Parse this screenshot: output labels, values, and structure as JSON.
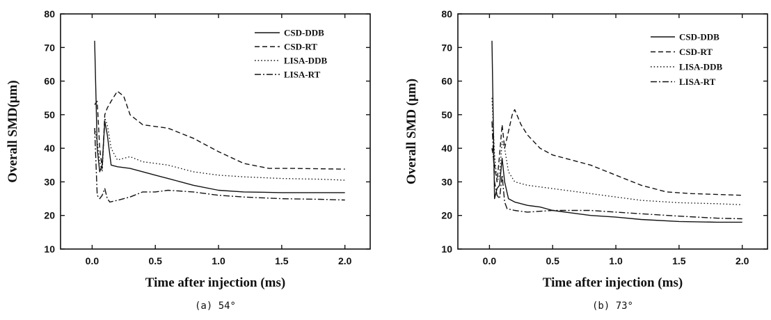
{
  "chart_data": [
    {
      "type": "line",
      "xlabel": "Time after injection (ms)",
      "ylabel": "Overall SMD(μm)",
      "caption": "(a)  54°",
      "xlim": [
        -0.25,
        2.2
      ],
      "ylim": [
        10,
        80
      ],
      "xticks": [
        0.0,
        0.5,
        1.0,
        1.5,
        2.0
      ],
      "xtick_labels": [
        "0.0",
        "0.5",
        "1.0",
        "1.5",
        "2.0"
      ],
      "yticks": [
        10,
        20,
        30,
        40,
        50,
        60,
        70,
        80
      ],
      "ytick_labels": [
        "10",
        "20",
        "30",
        "40",
        "50",
        "60",
        "70",
        "80"
      ],
      "legend_position": "top-right",
      "series": [
        {
          "name": "CSD-DDB",
          "style": "solid",
          "x": [
            0.02,
            0.04,
            0.06,
            0.08,
            0.1,
            0.12,
            0.15,
            0.2,
            0.3,
            0.4,
            0.5,
            0.6,
            0.7,
            0.8,
            1.0,
            1.2,
            1.5,
            1.8,
            2.0
          ],
          "y": [
            72,
            40,
            33,
            35,
            48,
            44,
            35,
            34.5,
            34,
            33,
            32,
            31,
            30,
            29,
            27.5,
            27,
            26.8,
            26.8,
            26.8
          ]
        },
        {
          "name": "CSD-RT",
          "style": "dashed",
          "x": [
            0.02,
            0.04,
            0.06,
            0.08,
            0.1,
            0.12,
            0.15,
            0.2,
            0.25,
            0.3,
            0.4,
            0.5,
            0.6,
            0.8,
            1.0,
            1.2,
            1.4,
            1.6,
            2.0
          ],
          "y": [
            53,
            54,
            40,
            34,
            50,
            52,
            54,
            57,
            55.5,
            50,
            47,
            46.5,
            46,
            43,
            39,
            35.5,
            34,
            34,
            33.8
          ]
        },
        {
          "name": "LISA-DDB",
          "style": "dotted",
          "x": [
            0.02,
            0.04,
            0.06,
            0.08,
            0.1,
            0.12,
            0.15,
            0.2,
            0.3,
            0.4,
            0.5,
            0.6,
            0.8,
            1.0,
            1.2,
            1.5,
            1.8,
            2.0
          ],
          "y": [
            46,
            42,
            36,
            33,
            49,
            47,
            40,
            36.5,
            37.5,
            36,
            35.5,
            35,
            33,
            32,
            31.5,
            31,
            30.8,
            30.5
          ]
        },
        {
          "name": "LISA-RT",
          "style": "dashdot",
          "x": [
            0.02,
            0.04,
            0.06,
            0.08,
            0.1,
            0.12,
            0.14,
            0.2,
            0.3,
            0.4,
            0.5,
            0.6,
            0.8,
            1.0,
            1.2,
            1.5,
            1.8,
            2.0
          ],
          "y": [
            46,
            26,
            25,
            26,
            28,
            25,
            24,
            24.5,
            25.5,
            27,
            27,
            27.5,
            27,
            26,
            25.5,
            25,
            24.8,
            24.6
          ]
        }
      ]
    },
    {
      "type": "line",
      "xlabel": "Time after injection (ms)",
      "ylabel": "Overall SMD (μm)",
      "caption": "(b)  73°",
      "xlim": [
        -0.25,
        2.2
      ],
      "ylim": [
        10,
        80
      ],
      "xticks": [
        0.0,
        0.5,
        1.0,
        1.5,
        2.0
      ],
      "xtick_labels": [
        "0.0",
        "0.5",
        "1.0",
        "1.5",
        "2.0"
      ],
      "yticks": [
        10,
        20,
        30,
        40,
        50,
        60,
        70,
        80
      ],
      "ytick_labels": [
        "10",
        "20",
        "30",
        "40",
        "50",
        "60",
        "70",
        "80"
      ],
      "legend_position": "top-right",
      "series": [
        {
          "name": "CSD-DDB",
          "style": "solid",
          "x": [
            0.02,
            0.04,
            0.06,
            0.08,
            0.1,
            0.12,
            0.15,
            0.2,
            0.3,
            0.4,
            0.5,
            0.6,
            0.8,
            1.0,
            1.2,
            1.5,
            1.8,
            2.0
          ],
          "y": [
            72,
            25,
            28,
            29,
            37,
            30,
            25,
            24,
            23,
            22.5,
            21.5,
            21,
            20,
            19.5,
            18.8,
            18.2,
            18,
            18
          ]
        },
        {
          "name": "CSD-RT",
          "style": "dashed",
          "x": [
            0.02,
            0.04,
            0.06,
            0.08,
            0.1,
            0.12,
            0.15,
            0.18,
            0.2,
            0.25,
            0.3,
            0.4,
            0.5,
            0.6,
            0.8,
            1.0,
            1.2,
            1.4,
            1.6,
            2.0
          ],
          "y": [
            40,
            35,
            30,
            38,
            47,
            40,
            45,
            50,
            51.5,
            47,
            44,
            40,
            38,
            37,
            35,
            32,
            29,
            27,
            26.5,
            26
          ]
        },
        {
          "name": "LISA-DDB",
          "style": "dotted",
          "x": [
            0.02,
            0.04,
            0.06,
            0.08,
            0.1,
            0.12,
            0.15,
            0.2,
            0.3,
            0.4,
            0.5,
            0.6,
            0.8,
            1.0,
            1.2,
            1.5,
            1.8,
            2.0
          ],
          "y": [
            55,
            38,
            30,
            32,
            42,
            40,
            33,
            30,
            29,
            28.5,
            28,
            27.5,
            26.5,
            25.5,
            24.5,
            23.8,
            23.5,
            23.2
          ]
        },
        {
          "name": "LISA-RT",
          "style": "dashdot",
          "x": [
            0.02,
            0.04,
            0.06,
            0.08,
            0.1,
            0.12,
            0.14,
            0.2,
            0.3,
            0.5,
            0.7,
            0.8,
            1.0,
            1.2,
            1.5,
            1.8,
            2.0
          ],
          "y": [
            48,
            30,
            26,
            25,
            32,
            24,
            22,
            21.5,
            21,
            21.5,
            21.5,
            21.5,
            21,
            20.5,
            19.8,
            19.2,
            19
          ]
        }
      ]
    }
  ]
}
